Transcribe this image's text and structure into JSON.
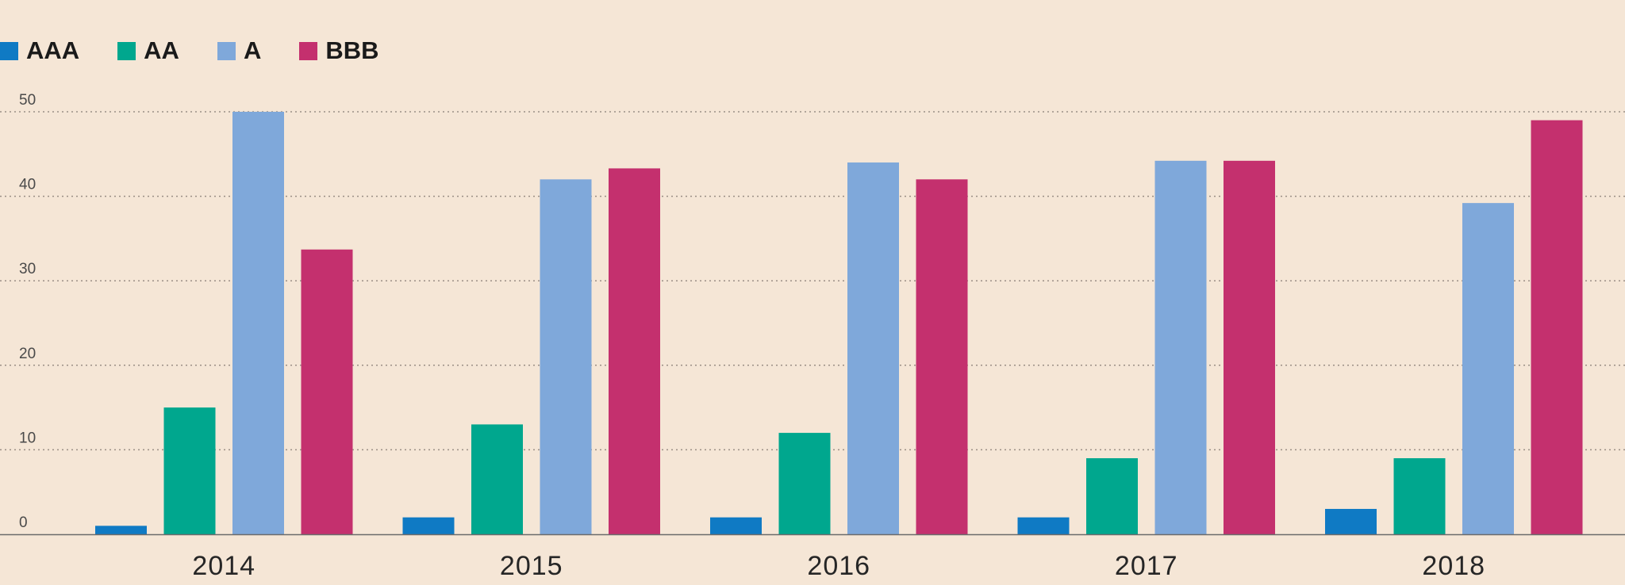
{
  "chart_data": {
    "type": "bar",
    "categories": [
      "2014",
      "2015",
      "2016",
      "2017",
      "2018"
    ],
    "series": [
      {
        "name": "AAA",
        "color": "#0f7ac4",
        "values": [
          1,
          2,
          2,
          2,
          3
        ]
      },
      {
        "name": "AA",
        "color": "#00a78e",
        "values": [
          15,
          13,
          12,
          9,
          9
        ]
      },
      {
        "name": "A",
        "color": "#7fa8da",
        "values": [
          50,
          42,
          44,
          44.2,
          39.2
        ]
      },
      {
        "name": "BBB",
        "color": "#c4306e",
        "values": [
          33.7,
          43.3,
          42,
          44.2,
          49
        ]
      }
    ],
    "yticks": [
      "0",
      "10",
      "20",
      "30",
      "40",
      "50"
    ],
    "ylim": [
      0,
      50
    ],
    "grid": true,
    "legend": "top-left",
    "title": "",
    "xlabel": "",
    "ylabel": ""
  }
}
